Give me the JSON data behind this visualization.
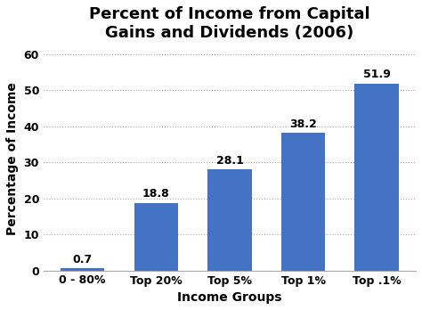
{
  "title": "Percent of Income from Capital\nGains and Dividends (2006)",
  "categories": [
    "0 - 80%",
    "Top 20%",
    "Top 5%",
    "Top 1%",
    "Top .1%"
  ],
  "values": [
    0.7,
    18.8,
    28.1,
    38.2,
    51.9
  ],
  "bar_color": "#4472C4",
  "xlabel": "Income Groups",
  "ylabel": "Percentage of Income",
  "ylim": [
    0,
    62
  ],
  "yticks": [
    0,
    10,
    20,
    30,
    40,
    50,
    60
  ],
  "title_fontsize": 13,
  "axis_label_fontsize": 10,
  "tick_fontsize": 9,
  "value_label_fontsize": 9,
  "background_color": "#ffffff",
  "plot_bg_color": "#ffffff"
}
